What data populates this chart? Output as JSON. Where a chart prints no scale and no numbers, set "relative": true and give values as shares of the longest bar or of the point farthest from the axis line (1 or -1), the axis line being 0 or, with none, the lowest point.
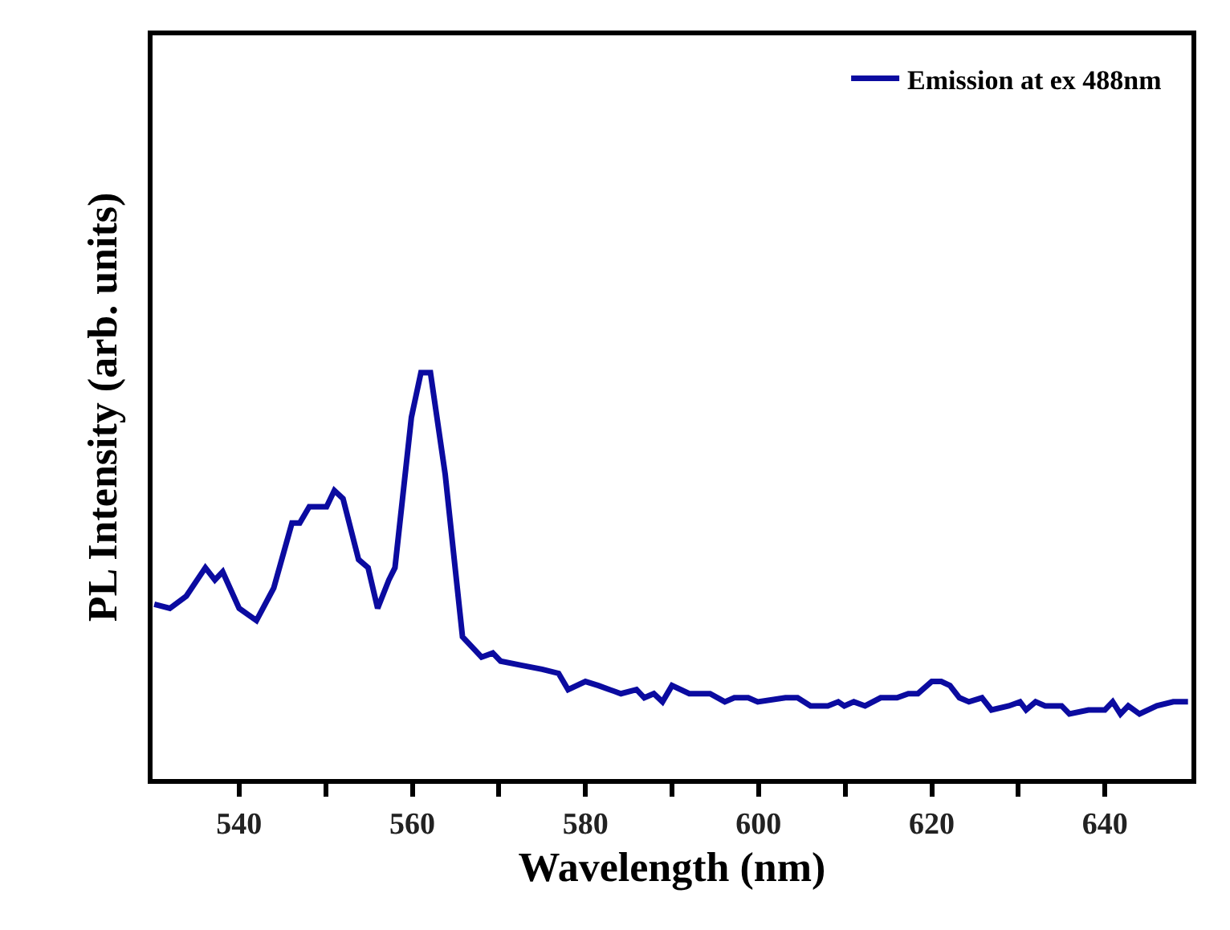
{
  "chart_data": {
    "type": "line",
    "xlabel": "Wavelength (nm)",
    "ylabel": "PL Intensity (arb. units)",
    "relative": true,
    "tick_labels": "x",
    "legend": "top right",
    "marker": "none",
    "line_style": "solid",
    "xlim": [
      530,
      650
    ],
    "xticks": [
      540,
      {
        "value": 550,
        "label": null
      },
      560,
      {
        "value": 570,
        "label": null
      },
      580,
      {
        "value": 590,
        "label": null
      },
      600,
      {
        "value": 610,
        "label": null
      },
      620,
      {
        "value": 630,
        "label": null
      },
      640
    ],
    "series": [
      {
        "name": "Emission at ex 488nm",
        "color": "#0b0ba0",
        "x": [
          530.2,
          532.0,
          533.9,
          536.1,
          537.2,
          538.1,
          540.0,
          542.0,
          544.0,
          546.1,
          547.0,
          548.1,
          550.1,
          551.0,
          552.0,
          553.8,
          554.9,
          556.0,
          557.3,
          558.0,
          559.9,
          561.0,
          562.1,
          563.8,
          565.8,
          568.0,
          569.3,
          570.2,
          572.6,
          575.0,
          576.9,
          578.0,
          580.0,
          581.5,
          582.8,
          584.1,
          585.9,
          586.8,
          587.9,
          588.9,
          590.0,
          592.0,
          594.4,
          596.1,
          597.2,
          598.8,
          599.9,
          603.1,
          604.5,
          606.0,
          608.0,
          609.2,
          609.9,
          611.0,
          612.3,
          614.1,
          616.0,
          617.3,
          618.4,
          620.0,
          621.1,
          622.1,
          623.2,
          624.3,
          625.8,
          626.9,
          628.9,
          630.2,
          630.9,
          632.0,
          633.1,
          635.0,
          635.9,
          638.1,
          640.0,
          640.9,
          641.8,
          642.7,
          644.0,
          646.0,
          647.9,
          649.6
        ],
        "values": [
          0.43,
          0.42,
          0.45,
          0.52,
          0.49,
          0.51,
          0.42,
          0.39,
          0.47,
          0.63,
          0.63,
          0.67,
          0.67,
          0.71,
          0.69,
          0.54,
          0.52,
          0.42,
          0.49,
          0.52,
          0.89,
          1.0,
          1.0,
          0.75,
          0.35,
          0.3,
          0.31,
          0.29,
          0.28,
          0.27,
          0.26,
          0.22,
          0.24,
          0.23,
          0.22,
          0.21,
          0.22,
          0.2,
          0.21,
          0.19,
          0.23,
          0.21,
          0.21,
          0.19,
          0.2,
          0.2,
          0.19,
          0.2,
          0.2,
          0.18,
          0.18,
          0.19,
          0.18,
          0.19,
          0.18,
          0.2,
          0.2,
          0.21,
          0.21,
          0.24,
          0.24,
          0.23,
          0.2,
          0.19,
          0.2,
          0.17,
          0.18,
          0.19,
          0.17,
          0.19,
          0.18,
          0.18,
          0.16,
          0.17,
          0.17,
          0.19,
          0.16,
          0.18,
          0.16,
          0.18,
          0.19,
          0.19
        ]
      }
    ]
  }
}
